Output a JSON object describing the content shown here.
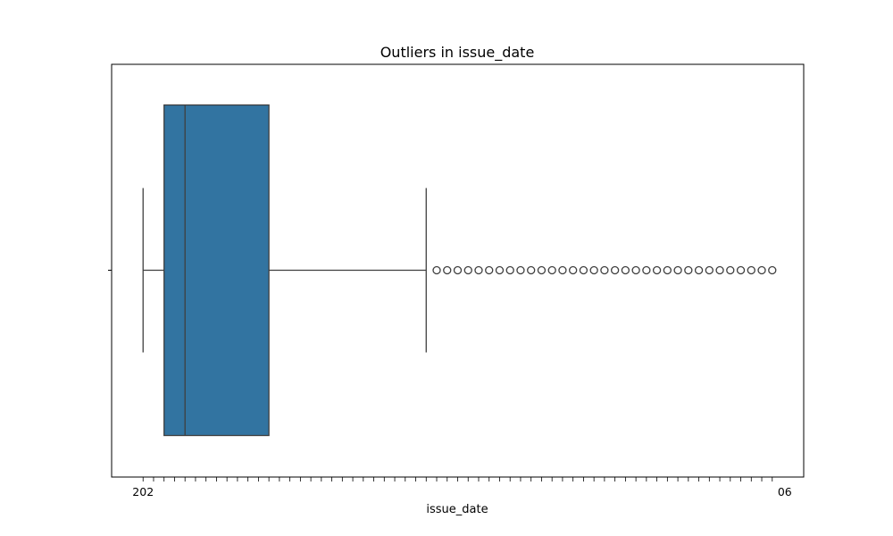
{
  "chart_data": {
    "type": "box",
    "title": "Outliers in issue_date",
    "xlabel": "issue_date",
    "ylabel": "",
    "orientation": "horizontal",
    "grid": false,
    "x_tick_first": "202",
    "x_tick_last": "06",
    "box": {
      "whisker_low": 0,
      "q1": 2,
      "median": 4,
      "q3": 12,
      "whisker_high": 27
    },
    "outliers": [
      28,
      29,
      30,
      31,
      32,
      33,
      34,
      35,
      36,
      37,
      38,
      39,
      40,
      41,
      42,
      43,
      44,
      45,
      46,
      47,
      48,
      49,
      50,
      51,
      52,
      53,
      54,
      55,
      56,
      57,
      58,
      59,
      60
    ],
    "x_tick_count": 61,
    "xlim": [
      -3,
      63
    ],
    "colors": {
      "box_fill": "#3274a1",
      "line": "#3f3f3f",
      "axes": "#000000"
    }
  }
}
